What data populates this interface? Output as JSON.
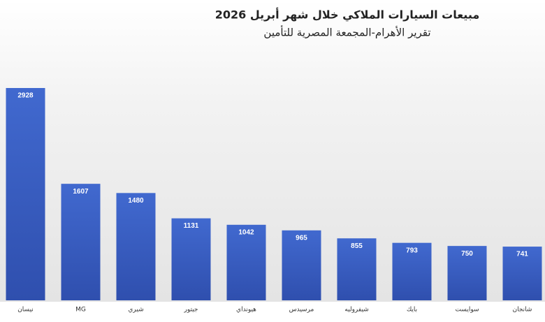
{
  "chart_data": {
    "type": "bar",
    "title": "مبيعات السيارات الملاكي خلال شهر أبريل 2026",
    "subtitle": "تقرير الأهرام-المجمعة المصرية للتأمين",
    "categories": [
      "نيسان",
      "MG",
      "شيري",
      "جيتور",
      "هيونداي",
      "مرسيدس",
      "شيفروليه",
      "بايك",
      "سوايست",
      "شانجان"
    ],
    "values": [
      2928,
      1607,
      1480,
      1131,
      1042,
      965,
      855,
      793,
      750,
      741
    ],
    "color": "#4169cf"
  }
}
